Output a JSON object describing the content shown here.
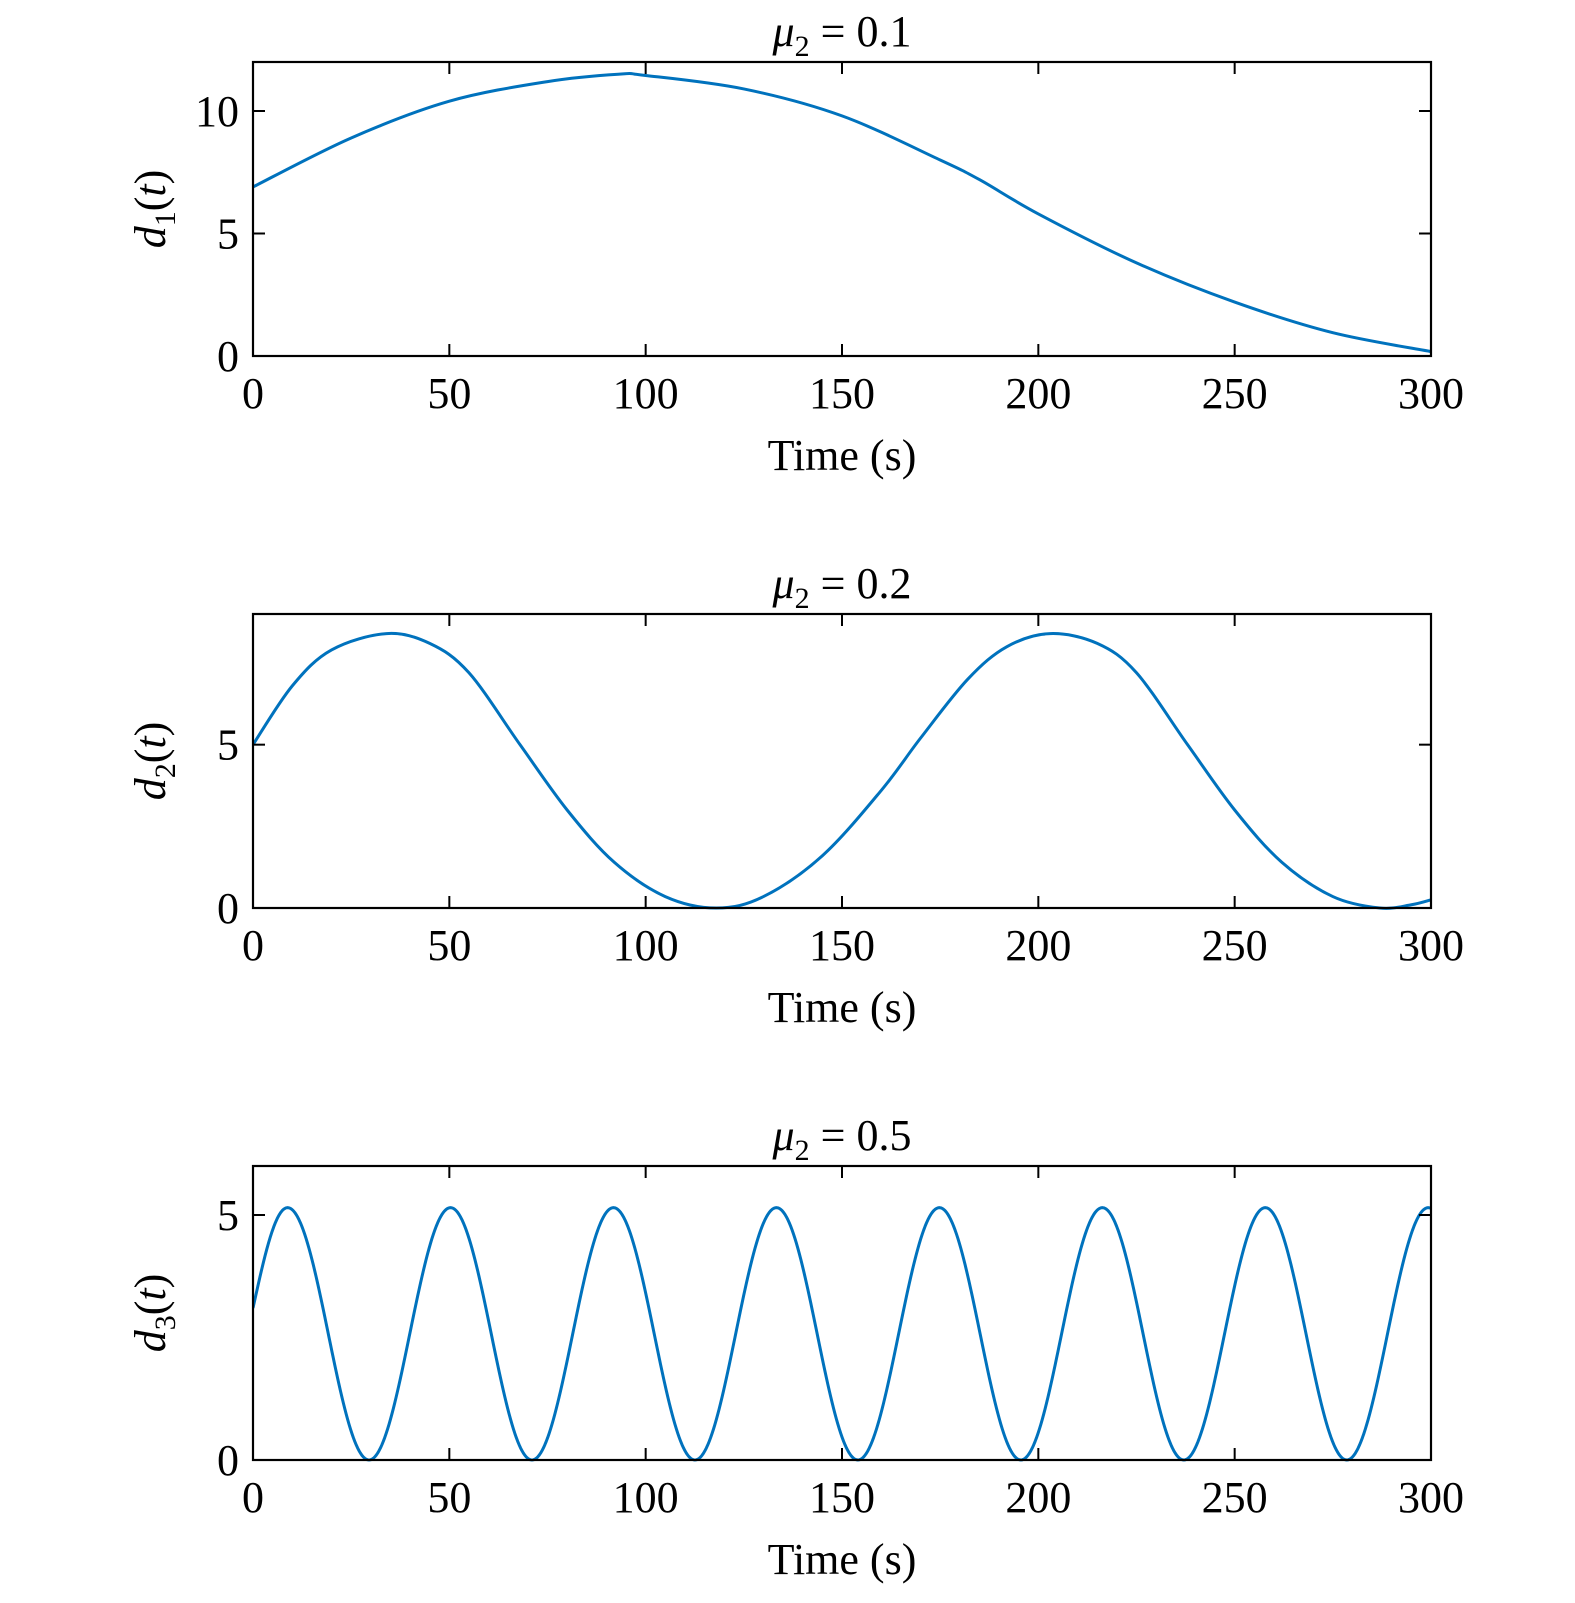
{
  "chart_data": [
    {
      "type": "line",
      "title": "μ2 = 0.1",
      "title_symbol": "μ",
      "title_subscript": "2",
      "title_rest": " = 0.1",
      "xlabel": "Time (s)",
      "ylabel": "d1(t)",
      "ylabel_var": "d",
      "ylabel_sub": "1",
      "ylabel_open": "(",
      "ylabel_arg": "t",
      "ylabel_close": ")",
      "xlim": [
        0,
        300
      ],
      "ylim": [
        0,
        12
      ],
      "xticks": [
        0,
        50,
        100,
        150,
        200,
        250,
        300
      ],
      "xtick_labels": [
        "0",
        "50",
        "100",
        "150",
        "200",
        "250",
        "300"
      ],
      "yticks": [
        0,
        5,
        10
      ],
      "ytick_labels": [
        "0",
        "5",
        "10"
      ],
      "grid": false,
      "line_color": "#0072bd",
      "series": [
        {
          "x": [
            0,
            25,
            50,
            75,
            93,
            100,
            125,
            150,
            175,
            185,
            200,
            225,
            250,
            275,
            300
          ],
          "y": [
            6.9,
            8.9,
            10.4,
            11.2,
            11.5,
            11.45,
            10.9,
            9.8,
            8.0,
            7.2,
            5.8,
            3.8,
            2.2,
            0.95,
            0.18
          ]
        }
      ]
    },
    {
      "type": "line",
      "title": "μ2 = 0.2",
      "title_symbol": "μ",
      "title_subscript": "2",
      "title_rest": " = 0.2",
      "xlabel": "Time (s)",
      "ylabel": "d2(t)",
      "ylabel_var": "d",
      "ylabel_sub": "2",
      "ylabel_open": "(",
      "ylabel_arg": "t",
      "ylabel_close": ")",
      "xlim": [
        0,
        300
      ],
      "ylim": [
        0,
        9
      ],
      "xticks": [
        0,
        50,
        100,
        150,
        200,
        250,
        300
      ],
      "xtick_labels": [
        "0",
        "50",
        "100",
        "150",
        "200",
        "250",
        "300"
      ],
      "yticks": [
        0,
        5
      ],
      "ytick_labels": [
        "0",
        "5"
      ],
      "grid": false,
      "line_color": "#0072bd",
      "series": [
        {
          "x": [
            0,
            10,
            20,
            34,
            45,
            55,
            68,
            80,
            92,
            105,
            118,
            130,
            145,
            160,
            170,
            182,
            192,
            203,
            215,
            225,
            238,
            250,
            262,
            275,
            287,
            295,
            300
          ],
          "y": [
            5.0,
            6.8,
            7.9,
            8.4,
            8.1,
            7.2,
            5.0,
            3.0,
            1.4,
            0.35,
            0.0,
            0.35,
            1.6,
            3.6,
            5.2,
            7.0,
            8.0,
            8.4,
            8.1,
            7.2,
            5.0,
            3.0,
            1.4,
            0.35,
            0.0,
            0.1,
            0.25
          ]
        }
      ]
    },
    {
      "type": "line",
      "title": "μ2 = 0.5",
      "title_symbol": "μ",
      "title_subscript": "2",
      "title_rest": " = 0.5",
      "xlabel": "Time (s)",
      "ylabel": "d3(t)",
      "ylabel_var": "d",
      "ylabel_sub": "3",
      "ylabel_open": "(",
      "ylabel_arg": "t",
      "ylabel_close": ")",
      "xlim": [
        0,
        300
      ],
      "ylim": [
        0,
        6
      ],
      "xticks": [
        0,
        50,
        100,
        150,
        200,
        250,
        300
      ],
      "xtick_labels": [
        "0",
        "50",
        "100",
        "150",
        "200",
        "250",
        "300"
      ],
      "yticks": [
        0,
        5
      ],
      "ytick_labels": [
        "0",
        "5"
      ],
      "grid": false,
      "line_color": "#0072bd",
      "series": [
        {
          "waveform": "periodic",
          "period": 41.5,
          "y_min": 0.0,
          "y_max": 5.15,
          "first_peak_x": 8.8,
          "y_at_x0": 3.1,
          "x_end": 300
        }
      ]
    }
  ]
}
